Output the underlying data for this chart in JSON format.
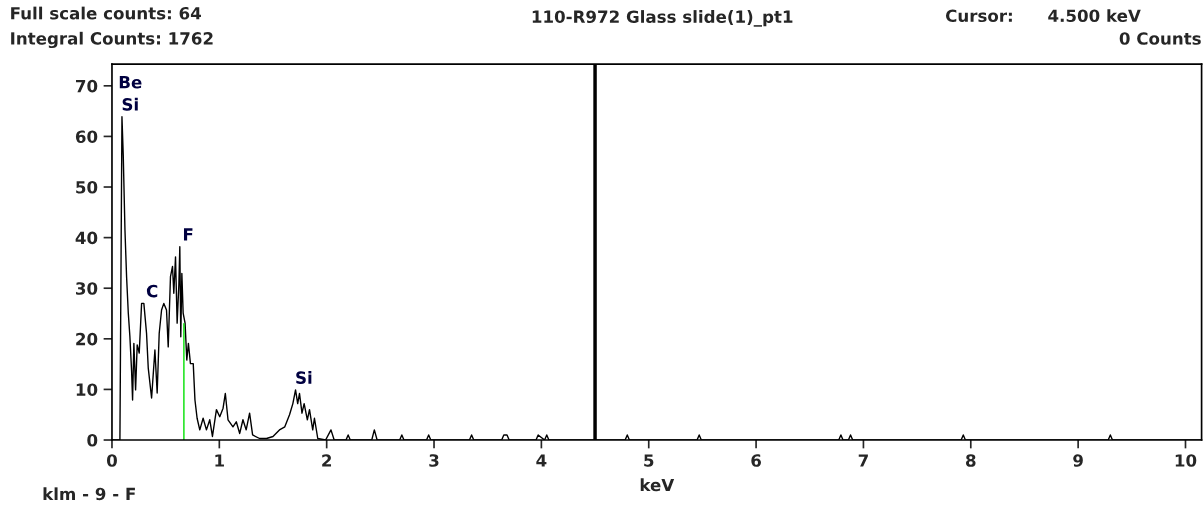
{
  "chart_data": {
    "type": "line",
    "title": "110-R972 Glass slide(1)_pt1",
    "xlabel": "keV",
    "xlim": [
      0,
      10.15
    ],
    "ylim": [
      0,
      74.3
    ],
    "xticks": [
      0,
      1,
      2,
      3,
      4,
      5,
      6,
      7,
      8,
      9,
      10
    ],
    "yticks": [
      0,
      10,
      20,
      30,
      40,
      50,
      60,
      70
    ],
    "grid": false,
    "marker": "none",
    "line_style": "solid",
    "series": [
      {
        "color": "#000000",
        "x": [
          0,
          0.074,
          0.093,
          0.105,
          0.121,
          0.136,
          0.152,
          0.167,
          0.183,
          0.192,
          0.204,
          0.22,
          0.235,
          0.254,
          0.276,
          0.297,
          0.322,
          0.338,
          0.369,
          0.4,
          0.421,
          0.44,
          0.462,
          0.483,
          0.508,
          0.524,
          0.545,
          0.564,
          0.576,
          0.592,
          0.607,
          0.623,
          0.632,
          0.641,
          0.651,
          0.663,
          0.681,
          0.697,
          0.712,
          0.731,
          0.757,
          0.773,
          0.793,
          0.818,
          0.849,
          0.88,
          0.911,
          0.936,
          0.973,
          1.004,
          1.035,
          1.056,
          1.081,
          1.127,
          1.158,
          1.19,
          1.22,
          1.25,
          1.282,
          1.31,
          1.375,
          1.44,
          1.5,
          1.56,
          1.61,
          1.654,
          1.685,
          1.71,
          1.73,
          1.747,
          1.77,
          1.79,
          1.82,
          1.84,
          1.87,
          1.886,
          1.917,
          1.99,
          2.04,
          2.07,
          2.18,
          2.2,
          2.22,
          2.42,
          2.444,
          2.47,
          2.68,
          2.7,
          2.72,
          2.93,
          2.95,
          2.97,
          3.33,
          3.35,
          3.37,
          3.63,
          3.65,
          3.68,
          3.7,
          3.95,
          3.97,
          4.03,
          4.05,
          4.07,
          4.78,
          4.8,
          4.82,
          5.45,
          5.47,
          5.49,
          6.77,
          6.79,
          6.81,
          6.86,
          6.88,
          6.9,
          7.91,
          7.93,
          7.95,
          9.28,
          9.3,
          9.32,
          10.15
        ],
        "values": [
          0,
          0,
          63.9,
          56.3,
          41.5,
          32.3,
          25.1,
          20.4,
          13.5,
          7.9,
          19.1,
          9.9,
          18.8,
          17.2,
          27,
          27,
          21.1,
          14.2,
          8.3,
          17.8,
          9.3,
          21.1,
          25.7,
          27,
          25.7,
          18.4,
          32.3,
          34.3,
          29,
          36.2,
          23.1,
          30.7,
          38.2,
          20.4,
          32.9,
          25.1,
          23.1,
          15.8,
          19.1,
          15.1,
          15.1,
          7.9,
          4.3,
          2,
          4.3,
          2,
          4,
          0.7,
          6,
          4.6,
          6.3,
          9.2,
          4,
          2.6,
          3.6,
          1.3,
          4,
          2,
          5.3,
          1,
          0.3,
          0.3,
          0.7,
          2,
          2.6,
          5,
          7.2,
          9.9,
          7.2,
          9.2,
          5.3,
          7.2,
          4,
          6,
          2,
          4.3,
          0.3,
          0,
          2,
          0,
          0,
          1,
          0,
          0,
          2,
          0,
          0,
          1,
          0,
          0,
          1,
          0,
          0,
          1,
          0,
          0,
          1,
          1,
          0,
          0,
          1,
          0,
          1,
          0,
          0,
          1,
          0,
          0,
          1,
          0,
          0,
          1,
          0,
          0,
          1,
          0,
          0,
          1,
          0,
          0,
          1,
          0,
          0
        ]
      },
      {
        "color": "#00e000",
        "x": [
          0.67,
          0.67
        ],
        "values": [
          0,
          23
        ]
      }
    ],
    "ref_lines": [
      {
        "axis": "x",
        "value": 4.5,
        "color": "#000000"
      }
    ],
    "annotations": [
      {
        "text": "Be",
        "x": 0.093,
        "y": 63.9
      },
      {
        "text": "Si",
        "x": 0.093,
        "y": 63.9
      },
      {
        "text": "C",
        "x": 0.297,
        "y": 27
      },
      {
        "text": "F",
        "x": 0.632,
        "y": 38.2
      },
      {
        "text": "Si",
        "x": 1.71,
        "y": 9.9
      },
      "Full scale counts: 64",
      "Integral Counts: 1762",
      "Cursor:",
      "4.500 keV",
      "0 Counts",
      "klm - 9 - F"
    ]
  }
}
